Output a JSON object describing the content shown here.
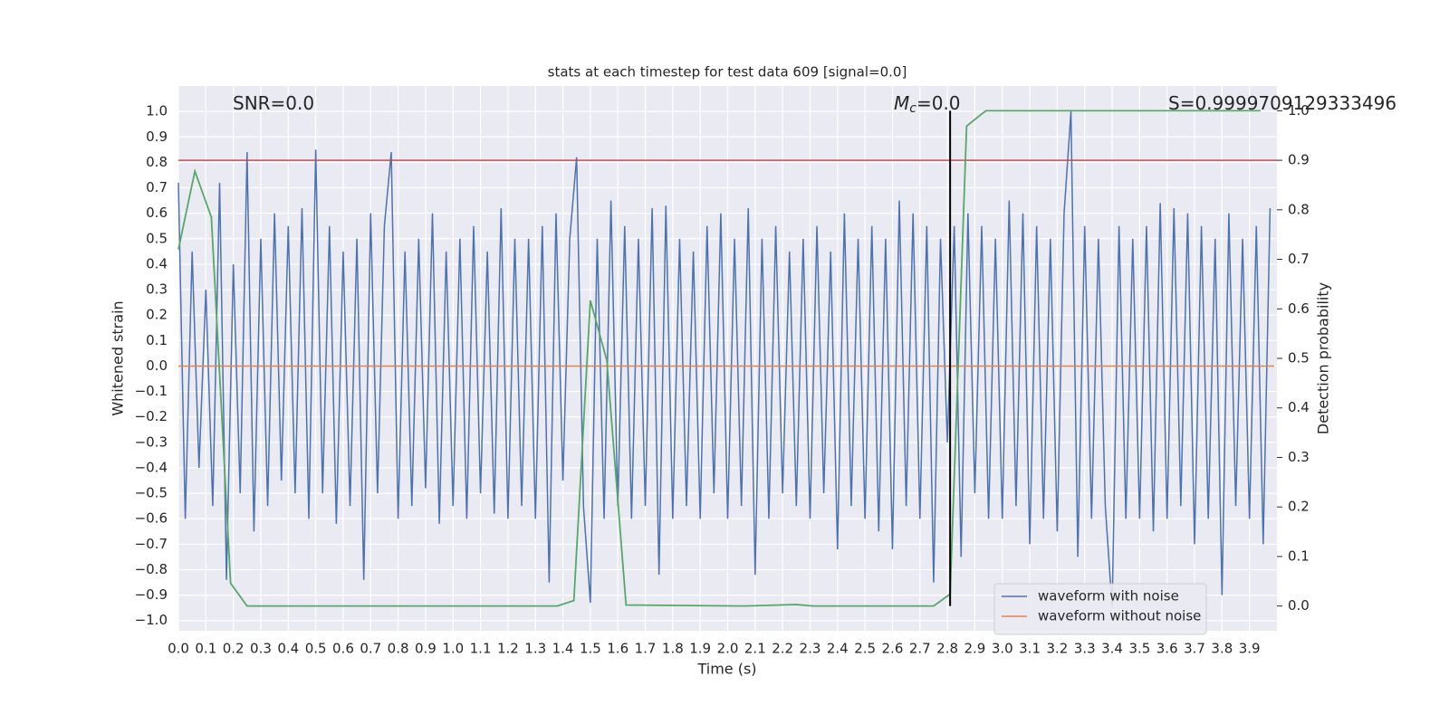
{
  "chart_data": {
    "type": "line",
    "title": "stats at each timestep for test data 609 [signal=0.0]",
    "xlabel": "Time (s)",
    "ylabel": "Whitened strain",
    "y2label": "Detection probability",
    "xlim": [
      0,
      4
    ],
    "ylim": [
      -1.04,
      1.1
    ],
    "y2lim": [
      -0.05,
      1.05
    ],
    "grid": true,
    "legend": "lower right",
    "xticks": [
      {
        "value": 0,
        "label": "0.0"
      },
      0.1,
      0.2,
      0.3,
      0.4,
      0.5,
      0.6,
      0.7,
      0.8,
      0.9,
      {
        "value": 1,
        "label": "1.0"
      },
      1.1,
      1.2,
      1.3,
      1.4,
      1.5,
      1.6,
      1.7,
      1.8,
      1.9,
      {
        "value": 2,
        "label": "2.0"
      },
      2.1,
      2.2,
      2.3,
      2.4,
      2.5,
      2.6,
      2.7,
      2.8,
      2.9,
      {
        "value": 3,
        "label": "3.0"
      },
      3.1,
      3.2,
      3.3,
      3.4,
      3.5,
      3.6,
      3.7,
      3.8,
      3.9
    ],
    "yticks": [
      {
        "value": 1,
        "label": "1.0"
      },
      0.9,
      0.8,
      0.7,
      0.6,
      0.5,
      0.4,
      0.3,
      0.2,
      0.1,
      {
        "value": 0,
        "label": "0.0"
      },
      {
        "value": -0.1,
        "label": "−0.1"
      },
      {
        "value": -0.2,
        "label": "−0.2"
      },
      {
        "value": -0.3,
        "label": "−0.3"
      },
      {
        "value": -0.4,
        "label": "−0.4"
      },
      {
        "value": -0.5,
        "label": "−0.5"
      },
      {
        "value": -0.6,
        "label": "−0.6"
      },
      {
        "value": -0.7,
        "label": "−0.7"
      },
      {
        "value": -0.8,
        "label": "−0.8"
      },
      {
        "value": -0.9,
        "label": "−0.9"
      },
      {
        "value": -1,
        "label": "−1.0"
      }
    ],
    "y2ticks": [
      {
        "value": 0,
        "label": "0.0"
      },
      0.1,
      0.2,
      0.3,
      0.4,
      0.5,
      0.6,
      0.7,
      0.8,
      0.9,
      {
        "value": 1,
        "label": "1.0"
      }
    ],
    "annotations": [
      {
        "parts": [
          "SNR=0.0"
        ]
      },
      {
        "parts": [
          "M",
          "c",
          "=0.0"
        ]
      },
      {
        "parts": [
          "S=0.9999709129333496"
        ]
      }
    ],
    "hline": {
      "value": 0.9,
      "axis": "y2",
      "color": "#c44e52"
    },
    "vline": {
      "x": 2.81,
      "ymin": 0,
      "ymax": 1,
      "axis": "y2",
      "color": "#000000"
    },
    "series": [
      {
        "name": "waveform with noise",
        "color": "#4c72b0",
        "x": [
          0,
          0.025,
          0.05,
          0.075,
          0.1,
          0.125,
          0.15,
          0.175,
          0.2,
          0.225,
          0.25,
          0.275,
          0.3,
          0.325,
          0.35,
          0.375,
          0.4,
          0.425,
          0.45,
          0.475,
          0.5,
          0.525,
          0.55,
          0.575,
          0.6,
          0.625,
          0.65,
          0.675,
          0.7,
          0.725,
          0.75,
          0.775,
          0.8,
          0.825,
          0.85,
          0.875,
          0.9,
          0.925,
          0.95,
          0.975,
          1,
          1.025,
          1.05,
          1.075,
          1.1,
          1.125,
          1.15,
          1.175,
          1.2,
          1.225,
          1.25,
          1.275,
          1.3,
          1.325,
          1.35,
          1.375,
          1.4,
          1.425,
          1.45,
          1.475,
          1.5,
          1.525,
          1.55,
          1.575,
          1.6,
          1.625,
          1.65,
          1.675,
          1.7,
          1.725,
          1.75,
          1.775,
          1.8,
          1.825,
          1.85,
          1.875,
          1.9,
          1.925,
          1.95,
          1.975,
          2,
          2.025,
          2.05,
          2.075,
          2.1,
          2.125,
          2.15,
          2.175,
          2.2,
          2.225,
          2.25,
          2.275,
          2.3,
          2.325,
          2.35,
          2.375,
          2.4,
          2.425,
          2.45,
          2.475,
          2.5,
          2.525,
          2.55,
          2.575,
          2.6,
          2.625,
          2.65,
          2.675,
          2.7,
          2.725,
          2.75,
          2.775,
          2.8,
          2.825,
          2.85,
          2.875,
          2.9,
          2.925,
          2.95,
          2.975,
          3,
          3.025,
          3.05,
          3.075,
          3.1,
          3.125,
          3.15,
          3.175,
          3.2,
          3.225,
          3.25,
          3.275,
          3.3,
          3.325,
          3.35,
          3.375,
          3.4,
          3.425,
          3.45,
          3.475,
          3.5,
          3.525,
          3.55,
          3.575,
          3.6,
          3.625,
          3.65,
          3.675,
          3.7,
          3.725,
          3.75,
          3.775,
          3.8,
          3.825,
          3.85,
          3.875,
          3.9,
          3.925,
          3.95,
          3.975
        ],
        "values": [
          0.72,
          -0.6,
          0.45,
          -0.4,
          0.3,
          -0.55,
          0.72,
          -0.84,
          0.4,
          -0.5,
          0.84,
          -0.65,
          0.5,
          -0.55,
          0.6,
          -0.45,
          0.55,
          -0.5,
          0.62,
          -0.6,
          0.85,
          -0.5,
          0.55,
          -0.62,
          0.45,
          -0.55,
          0.5,
          -0.84,
          0.6,
          -0.5,
          0.55,
          0.84,
          -0.6,
          0.45,
          -0.55,
          0.5,
          -0.48,
          0.6,
          -0.62,
          0.45,
          -0.55,
          0.5,
          -0.6,
          0.55,
          -0.5,
          0.45,
          -0.58,
          0.62,
          -0.6,
          0.5,
          -0.55,
          0.5,
          -0.6,
          0.55,
          -0.85,
          0.6,
          -0.45,
          0.5,
          0.82,
          -0.55,
          -0.93,
          0.5,
          -0.6,
          0.65,
          -0.55,
          0.55,
          -0.6,
          0.5,
          -0.55,
          0.62,
          -0.82,
          0.63,
          -0.6,
          0.5,
          -0.55,
          0.45,
          -0.6,
          0.55,
          -0.5,
          0.6,
          -0.6,
          0.5,
          -0.55,
          0.62,
          -0.82,
          0.5,
          -0.6,
          0.55,
          -0.5,
          0.45,
          -0.55,
          0.5,
          -0.6,
          0.55,
          -0.5,
          0.45,
          -0.72,
          0.6,
          -0.55,
          0.5,
          -0.6,
          0.55,
          -0.65,
          0.5,
          -0.72,
          0.65,
          -0.55,
          0.6,
          -0.6,
          0.55,
          -0.85,
          0.5,
          -0.3,
          0.55,
          -0.75,
          0.6,
          -0.5,
          0.55,
          -0.6,
          0.5,
          -0.6,
          0.65,
          -0.55,
          0.6,
          -0.7,
          0.55,
          -0.6,
          0.5,
          -0.65,
          0.6,
          1.0,
          -0.75,
          0.55,
          -0.6,
          0.5,
          -0.55,
          -0.95,
          0.55,
          -0.6,
          0.5,
          -0.6,
          0.55,
          -0.65,
          0.64,
          -0.6,
          0.62,
          -0.55,
          0.6,
          -0.7,
          0.55,
          -0.6,
          0.5,
          -0.9,
          0.6,
          -0.55,
          0.5,
          -0.6,
          0.55,
          -0.7,
          0.62
        ]
      },
      {
        "name": "waveform without noise",
        "color": "#dd8452",
        "x": [
          0,
          3.99
        ],
        "values": [
          0,
          0
        ]
      },
      {
        "color": "#55a868",
        "axis": "y2",
        "x": [
          0,
          0.06,
          0.12,
          0.19,
          0.25,
          1.38,
          1.44,
          1.5,
          1.56,
          1.63,
          2.06,
          2.25,
          2.31,
          2.75,
          2.81,
          2.87,
          2.94,
          3.94
        ],
        "values": [
          0.72,
          0.878,
          0.785,
          0.046,
          0,
          0,
          0.011,
          0.617,
          0.496,
          0.002,
          0,
          0.003,
          0,
          0,
          0.024,
          0.969,
          1,
          1
        ]
      }
    ]
  }
}
